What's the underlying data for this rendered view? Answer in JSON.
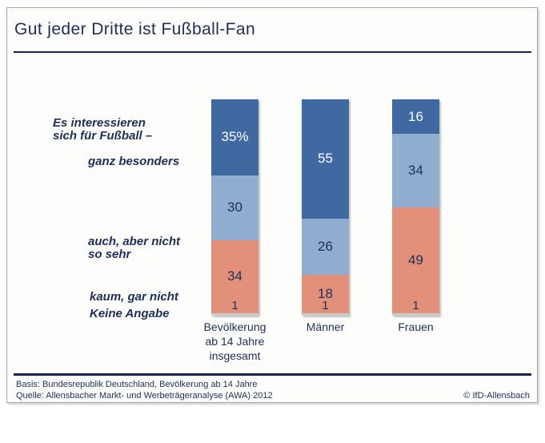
{
  "header": {
    "title": "Gut jeder Dritte ist Fußball-Fan"
  },
  "annotations": {
    "intro": [
      "Es interessieren",
      "sich für Fußball –"
    ],
    "ganz_besonders": "ganz besonders",
    "auch": [
      "auch, aber nicht",
      "so sehr"
    ],
    "kaum_gar_nicht": "kaum, gar nicht",
    "keine_angabe": "Keine Angabe"
  },
  "chart_data": {
    "type": "bar",
    "stacked": true,
    "orientation": "vertical",
    "unit": "percent",
    "title": "Gut jeder Dritte ist Fußball-Fan",
    "question": "Es interessieren sich für Fußball –",
    "ylim": [
      0,
      100
    ],
    "gridlines": false,
    "legend_position": "left-annotations",
    "categories": [
      [
        "Bevölkerung",
        "ab 14 Jahre",
        "insgesamt"
      ],
      [
        "Männer"
      ],
      [
        "Frauen"
      ]
    ],
    "series": [
      {
        "name": "ganz besonders",
        "color": "#4069a2",
        "label_color": "#ffffff",
        "values": [
          35,
          55,
          16
        ],
        "display": [
          "35%",
          "55",
          "16"
        ]
      },
      {
        "name": "auch, aber nicht so sehr",
        "color": "#8fadce",
        "label_color": "#1d2e5a",
        "values": [
          30,
          26,
          34
        ],
        "display": [
          "30",
          "26",
          "34"
        ]
      },
      {
        "name": "kaum, gar nicht",
        "color": "#e2907a",
        "label_color": "#1d2e5a",
        "values": [
          34,
          18,
          49
        ],
        "display": [
          "34",
          "18",
          "49"
        ]
      },
      {
        "name": "Keine Angabe",
        "color": "#cbcbc7",
        "label_color": "#1d2e5a",
        "values": [
          1,
          1,
          1
        ],
        "display": [
          "1",
          "1",
          "1"
        ]
      }
    ]
  },
  "footer": {
    "basis": "Basis: Bundesrepublik Deutschland, Bevölkerung ab 14 Jahre",
    "quelle": "Quelle: Allensbacher Markt- und Werbeträgeranalyse (AWA) 2012",
    "copyright": "© IfD-Allensbach"
  },
  "colors": {
    "navy_text": "#1d2e5a",
    "rule": "#17244e",
    "dark_blue": "#4069a2",
    "light_blue": "#8fadce",
    "salmon": "#e2907a",
    "gray_segment": "#cbcbc7",
    "frame_border": "#a6a6a6"
  }
}
